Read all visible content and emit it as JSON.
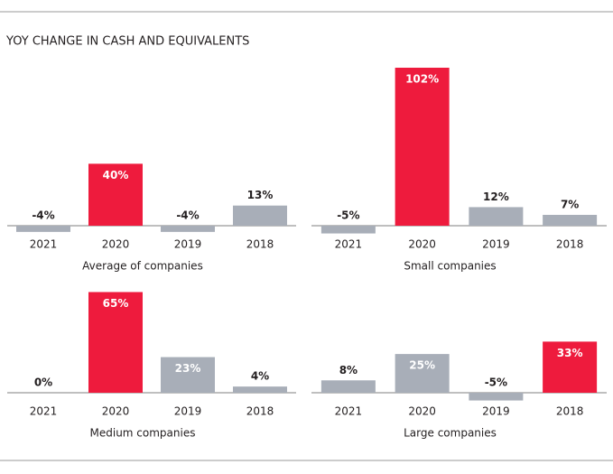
{
  "title": "YOY CHANGE IN CASH AND EQUIVALENTS",
  "chart_data": [
    {
      "type": "bar",
      "title": "Average of companies",
      "categories": [
        "2021",
        "2020",
        "2019",
        "2018"
      ],
      "values": [
        -4,
        40,
        -4,
        13
      ],
      "value_labels": [
        "-4%",
        "40%",
        "-4%",
        "13%"
      ],
      "colors": [
        "#a8aeb8",
        "#ee1b3d",
        "#a8aeb8",
        "#a8aeb8"
      ]
    },
    {
      "type": "bar",
      "title": "Small companies",
      "categories": [
        "2021",
        "2020",
        "2019",
        "2018"
      ],
      "values": [
        -5,
        102,
        12,
        7
      ],
      "value_labels": [
        "-5%",
        "102%",
        "12%",
        "7%"
      ],
      "colors": [
        "#a8aeb8",
        "#ee1b3d",
        "#a8aeb8",
        "#a8aeb8"
      ]
    },
    {
      "type": "bar",
      "title": "Medium companies",
      "categories": [
        "2021",
        "2020",
        "2019",
        "2018"
      ],
      "values": [
        0,
        65,
        23,
        4
      ],
      "value_labels": [
        "0%",
        "65%",
        "23%",
        "4%"
      ],
      "colors": [
        "#a8aeb8",
        "#ee1b3d",
        "#a8aeb8",
        "#a8aeb8"
      ]
    },
    {
      "type": "bar",
      "title": "Large companies",
      "categories": [
        "2021",
        "2020",
        "2019",
        "2018"
      ],
      "values": [
        8,
        25,
        -5,
        33
      ],
      "value_labels": [
        "8%",
        "25%",
        "-5%",
        "33%"
      ],
      "colors": [
        "#a8aeb8",
        "#a8aeb8",
        "#a8aeb8",
        "#ee1b3d"
      ]
    }
  ]
}
